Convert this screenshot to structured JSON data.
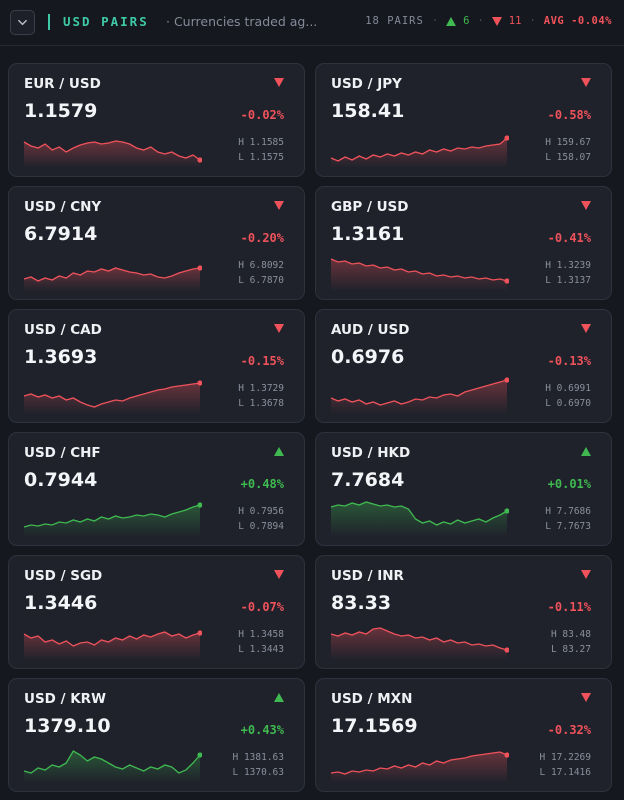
{
  "header": {
    "title": "USD PAIRS",
    "subtitle": "· Currencies traded ag...",
    "pairs_count": "18 PAIRS",
    "up_count": "6",
    "down_count": "11",
    "avg_label": "AVG -0.04%"
  },
  "colors": {
    "up": "#3fb950",
    "down": "#f0525b",
    "accent": "#3ec9a7"
  },
  "cards": [
    {
      "pair": "EUR / USD",
      "price": "1.1579",
      "change": "-0.02%",
      "direction": "down",
      "high": "H 1.1585",
      "low": "L 1.1575"
    },
    {
      "pair": "USD / JPY",
      "price": "158.41",
      "change": "-0.58%",
      "direction": "down",
      "high": "H 159.67",
      "low": "L 158.07"
    },
    {
      "pair": "USD / CNY",
      "price": "6.7914",
      "change": "-0.20%",
      "direction": "down",
      "high": "H 6.8092",
      "low": "L 6.7870"
    },
    {
      "pair": "GBP / USD",
      "price": "1.3161",
      "change": "-0.41%",
      "direction": "down",
      "high": "H 1.3239",
      "low": "L 1.3137"
    },
    {
      "pair": "USD / CAD",
      "price": "1.3693",
      "change": "-0.15%",
      "direction": "down",
      "high": "H 1.3729",
      "low": "L 1.3678"
    },
    {
      "pair": "AUD / USD",
      "price": "0.6976",
      "change": "-0.13%",
      "direction": "down",
      "high": "H 0.6991",
      "low": "L 0.6970"
    },
    {
      "pair": "USD / CHF",
      "price": "0.7944",
      "change": "+0.48%",
      "direction": "up",
      "high": "H 0.7956",
      "low": "L 0.7894"
    },
    {
      "pair": "USD / HKD",
      "price": "7.7684",
      "change": "+0.01%",
      "direction": "up",
      "high": "H 7.7686",
      "low": "L 7.7673"
    },
    {
      "pair": "USD / SGD",
      "price": "1.3446",
      "change": "-0.07%",
      "direction": "down",
      "high": "H 1.3458",
      "low": "L 1.3443"
    },
    {
      "pair": "USD / INR",
      "price": "83.33",
      "change": "-0.11%",
      "direction": "down",
      "high": "H 83.48",
      "low": "L 83.27"
    },
    {
      "pair": "USD / KRW",
      "price": "1379.10",
      "change": "+0.43%",
      "direction": "up",
      "high": "H 1381.63",
      "low": "L 1370.63"
    },
    {
      "pair": "USD / MXN",
      "price": "17.1569",
      "change": "-0.32%",
      "direction": "down",
      "high": "H 17.2269",
      "low": "L 17.1416"
    }
  ]
}
